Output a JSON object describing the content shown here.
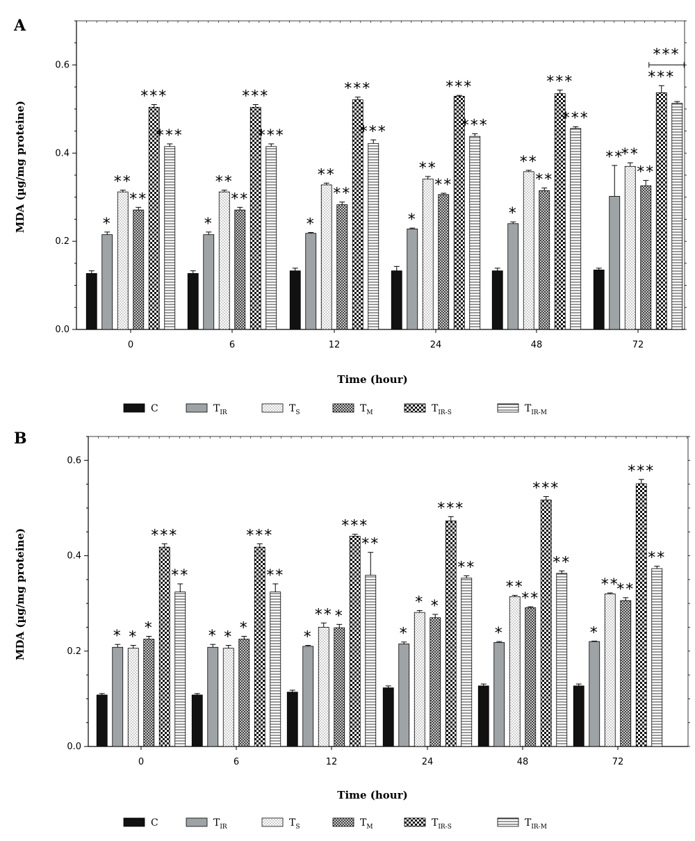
{
  "chart_data": [
    {
      "type": "bar",
      "panel_label": "A",
      "xlabel": "Time (hour)",
      "ylabel": "MDA (µg/mg proteine)",
      "ylim": [
        0,
        0.7
      ],
      "yticks": [
        "0.0",
        "0.2",
        "0.4",
        "0.6"
      ],
      "categories": [
        "0",
        "6",
        "12",
        "24",
        "48",
        "72"
      ],
      "series": [
        {
          "name": "C",
          "values": [
            0.127,
            0.127,
            0.133,
            0.133,
            0.133,
            0.135
          ],
          "errors": [
            0.006,
            0.006,
            0.006,
            0.01,
            0.006,
            0.004
          ]
        },
        {
          "name": "TIR",
          "values": [
            0.215,
            0.215,
            0.218,
            0.228,
            0.24,
            0.302
          ],
          "errors": [
            0.006,
            0.006,
            0.002,
            0.002,
            0.004,
            0.07
          ]
        },
        {
          "name": "TS",
          "values": [
            0.312,
            0.312,
            0.328,
            0.341,
            0.358,
            0.37
          ],
          "errors": [
            0.004,
            0.004,
            0.004,
            0.006,
            0.003,
            0.008
          ]
        },
        {
          "name": "TM",
          "values": [
            0.271,
            0.271,
            0.283,
            0.306,
            0.315,
            0.326
          ],
          "errors": [
            0.006,
            0.006,
            0.006,
            0.003,
            0.006,
            0.012
          ]
        },
        {
          "name": "TIR-S",
          "values": [
            0.504,
            0.504,
            0.521,
            0.529,
            0.535,
            0.537
          ],
          "errors": [
            0.006,
            0.006,
            0.006,
            0.002,
            0.008,
            0.016
          ]
        },
        {
          "name": "TIR-M",
          "values": [
            0.415,
            0.415,
            0.422,
            0.438,
            0.456,
            0.513
          ],
          "errors": [
            0.006,
            0.006,
            0.008,
            0.006,
            0.004,
            0.004
          ]
        }
      ],
      "annotations": [
        [
          "",
          "*",
          "**",
          "**",
          "***",
          "***"
        ],
        [
          "",
          "*",
          "**",
          "**",
          "***",
          "***"
        ],
        [
          "",
          "*",
          "**",
          "**",
          "***",
          "***"
        ],
        [
          "",
          "*",
          "**",
          "**",
          "***",
          "***"
        ],
        [
          "",
          "*",
          "**",
          "**",
          "***",
          "***"
        ],
        [
          "",
          "**",
          "**",
          "**",
          "***",
          ""
        ]
      ],
      "bracket_annotation": "***"
    },
    {
      "type": "bar",
      "panel_label": "B",
      "xlabel": "Time (hour)",
      "ylabel": "MDA (µg/mg proteine)",
      "ylim": [
        0,
        0.65
      ],
      "yticks": [
        "0.0",
        "0.2",
        "0.4",
        "0.6"
      ],
      "categories": [
        "0",
        "6",
        "12",
        "24",
        "48",
        "72"
      ],
      "series": [
        {
          "name": "C",
          "values": [
            0.108,
            0.108,
            0.114,
            0.123,
            0.127,
            0.127
          ],
          "errors": [
            0.003,
            0.003,
            0.004,
            0.004,
            0.004,
            0.004
          ]
        },
        {
          "name": "TIR",
          "values": [
            0.208,
            0.208,
            0.21,
            0.215,
            0.218,
            0.22
          ],
          "errors": [
            0.006,
            0.006,
            0.002,
            0.004,
            0.002,
            0.001
          ]
        },
        {
          "name": "TS",
          "values": [
            0.206,
            0.206,
            0.25,
            0.281,
            0.314,
            0.32
          ],
          "errors": [
            0.006,
            0.006,
            0.009,
            0.004,
            0.003,
            0.002
          ]
        },
        {
          "name": "TM",
          "values": [
            0.225,
            0.225,
            0.249,
            0.27,
            0.291,
            0.306
          ],
          "errors": [
            0.006,
            0.006,
            0.007,
            0.007,
            0.002,
            0.006
          ]
        },
        {
          "name": "TIR-S",
          "values": [
            0.418,
            0.418,
            0.441,
            0.473,
            0.517,
            0.551
          ],
          "errors": [
            0.007,
            0.007,
            0.004,
            0.009,
            0.007,
            0.009
          ]
        },
        {
          "name": "TIR-M",
          "values": [
            0.324,
            0.324,
            0.359,
            0.353,
            0.363,
            0.373
          ],
          "errors": [
            0.017,
            0.017,
            0.048,
            0.005,
            0.005,
            0.005
          ]
        }
      ],
      "annotations": [
        [
          "",
          "*",
          "*",
          "*",
          "***",
          "**"
        ],
        [
          "",
          "*",
          "*",
          "*",
          "***",
          "**"
        ],
        [
          "",
          "*",
          "**",
          "*",
          "***",
          "**"
        ],
        [
          "",
          "*",
          "*",
          "*",
          "***",
          "**"
        ],
        [
          "",
          "*",
          "**",
          "**",
          "***",
          "**"
        ],
        [
          "",
          "*",
          "**",
          "**",
          "***",
          "**"
        ]
      ]
    }
  ],
  "legend": [
    {
      "main": "C",
      "sub": "",
      "pattern": "solid"
    },
    {
      "main": "T",
      "sub": "IR",
      "pattern": "gray"
    },
    {
      "main": "T",
      "sub": "S",
      "pattern": "dots"
    },
    {
      "main": "T",
      "sub": "M",
      "pattern": "crosshatch"
    },
    {
      "main": "T",
      "sub": "IR-S",
      "pattern": "checker"
    },
    {
      "main": "T",
      "sub": "IR-M",
      "pattern": "hlines"
    }
  ],
  "colors": {
    "solid": "#111111",
    "gray": "#9ea3a6",
    "axis": "#000000"
  }
}
